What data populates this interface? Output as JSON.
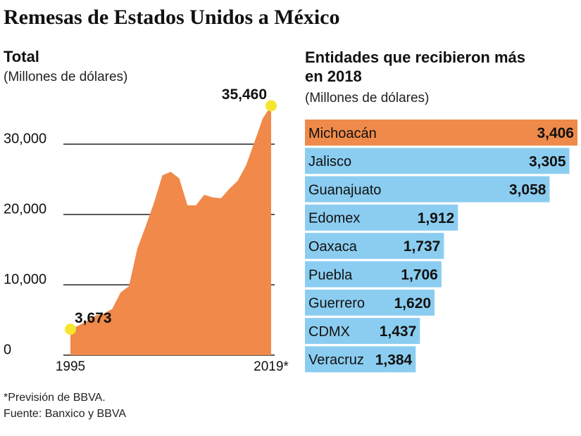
{
  "title": "Remesas de Estados Unidos a México",
  "notes": [
    "*Previsión de BBVA.",
    "Fuente: Banxico y BBVA"
  ],
  "chart_data": [
    {
      "type": "area",
      "title": "Total",
      "subtitle": "(Millones de dólares)",
      "categories": [
        "1995",
        null,
        null,
        null,
        null,
        null,
        null,
        null,
        null,
        null,
        null,
        null,
        null,
        null,
        null,
        null,
        null,
        null,
        null,
        null,
        null,
        null,
        null,
        null,
        "2019*"
      ],
      "values": [
        3673,
        4220,
        4860,
        5630,
        5910,
        6570,
        8900,
        9810,
        15140,
        18330,
        21690,
        25570,
        26060,
        25150,
        21310,
        21300,
        22800,
        22440,
        22300,
        23650,
        24790,
        26990,
        30290,
        33680,
        35460
      ],
      "value_labels": [
        "3,673",
        null,
        null,
        null,
        null,
        null,
        null,
        null,
        null,
        null,
        null,
        null,
        null,
        null,
        null,
        null,
        null,
        null,
        null,
        null,
        null,
        null,
        null,
        null,
        "35,460"
      ],
      "color": "#f0894a",
      "marker_color": "#f6e52e",
      "ylim": [
        0,
        36000
      ],
      "yticks": [
        0,
        {
          "value": 10000,
          "label": "10,000"
        },
        {
          "value": 20000,
          "label": "20,000"
        },
        {
          "value": 30000,
          "label": "30,000"
        }
      ],
      "grid": true
    },
    {
      "type": "hbar",
      "title": "Entidades que recibieron más en 2018",
      "subtitle": "(Millones de dólares)",
      "categories": [
        "Michoacán",
        "Jalisco",
        "Guanajuato",
        "Edomex",
        "Oaxaca",
        "Puebla",
        "Guerrero",
        "CDMX",
        "Veracruz"
      ],
      "values": [
        3406,
        3305,
        3058,
        1912,
        1737,
        1706,
        1620,
        1437,
        1384
      ],
      "value_labels": [
        "3,406",
        "3,305",
        "3,058",
        "1,912",
        "1,737",
        "1,706",
        "1,620",
        "1,437",
        "1,384"
      ],
      "colors": [
        "#ef8a4a",
        "#8bcdf0",
        "#8bcdf0",
        "#8bcdf0",
        "#8bcdf0",
        "#8bcdf0",
        "#8bcdf0",
        "#8bcdf0",
        "#8bcdf0"
      ]
    }
  ]
}
